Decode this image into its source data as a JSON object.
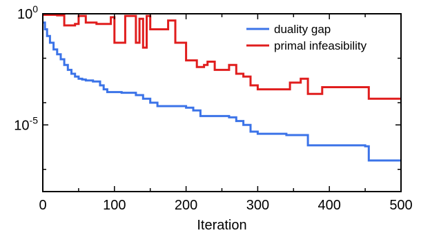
{
  "chart_data": {
    "type": "line",
    "title": "",
    "xlabel": "Iteration",
    "ylabel": "",
    "xlim": [
      0,
      500
    ],
    "ylim": [
      1e-08,
      1
    ],
    "yscale": "log",
    "x_ticks": [
      0,
      100,
      200,
      300,
      400,
      500
    ],
    "y_ticks_major": [
      {
        "value": 1,
        "base": "10",
        "exp": "0"
      },
      {
        "value": 1e-05,
        "base": "10",
        "exp": "-5"
      }
    ],
    "y_ticks_minor": [
      0.01,
      0.0001,
      1e-07
    ],
    "grid": false,
    "legend": "top-right",
    "series": [
      {
        "name": "duality gap",
        "color": "#3b73e8",
        "points": [
          [
            0,
            0.4
          ],
          [
            3,
            0.2
          ],
          [
            6,
            0.1
          ],
          [
            10,
            0.05
          ],
          [
            15,
            0.025
          ],
          [
            20,
            0.015
          ],
          [
            25,
            0.009
          ],
          [
            30,
            0.005
          ],
          [
            35,
            0.003
          ],
          [
            40,
            0.002
          ],
          [
            45,
            0.0015
          ],
          [
            50,
            0.0012
          ],
          [
            55,
            0.0011
          ],
          [
            60,
            0.001
          ],
          [
            70,
            0.0009
          ],
          [
            80,
            0.0006
          ],
          [
            85,
            0.0004
          ],
          [
            90,
            0.0003
          ],
          [
            110,
            0.00028
          ],
          [
            130,
            0.00022
          ],
          [
            140,
            0.00015
          ],
          [
            150,
            0.0001
          ],
          [
            160,
            7e-05
          ],
          [
            200,
            6e-05
          ],
          [
            210,
            4.5e-05
          ],
          [
            220,
            2.5e-05
          ],
          [
            260,
            2.2e-05
          ],
          [
            270,
            1.5e-05
          ],
          [
            280,
            1e-05
          ],
          [
            290,
            5e-06
          ],
          [
            300,
            4e-06
          ],
          [
            340,
            3.5e-06
          ],
          [
            370,
            1.2e-06
          ],
          [
            450,
            1.1e-06
          ],
          [
            455,
            2.5e-07
          ],
          [
            500,
            2.5e-07
          ]
        ]
      },
      {
        "name": "primal infeasibility",
        "color": "#e01d1d",
        "points": [
          [
            0,
            0.9
          ],
          [
            20,
            0.85
          ],
          [
            30,
            0.3
          ],
          [
            45,
            0.35
          ],
          [
            50,
            0.8
          ],
          [
            60,
            0.4
          ],
          [
            75,
            0.35
          ],
          [
            95,
            0.7
          ],
          [
            100,
            0.05
          ],
          [
            110,
            0.05
          ],
          [
            115,
            0.8
          ],
          [
            125,
            0.8
          ],
          [
            130,
            0.05
          ],
          [
            135,
            0.6
          ],
          [
            140,
            0.03
          ],
          [
            145,
            0.8
          ],
          [
            150,
            0.2
          ],
          [
            160,
            0.2
          ],
          [
            175,
            0.5
          ],
          [
            185,
            0.05
          ],
          [
            195,
            0.05
          ],
          [
            200,
            0.008
          ],
          [
            215,
            0.004
          ],
          [
            225,
            0.005
          ],
          [
            230,
            0.007
          ],
          [
            240,
            0.003
          ],
          [
            255,
            0.003
          ],
          [
            260,
            0.005
          ],
          [
            270,
            0.002
          ],
          [
            280,
            0.0015
          ],
          [
            290,
            0.0006
          ],
          [
            300,
            0.0004
          ],
          [
            330,
            0.0004
          ],
          [
            345,
            0.0008
          ],
          [
            355,
            0.0008
          ],
          [
            360,
            0.0012
          ],
          [
            370,
            0.00025
          ],
          [
            390,
            0.0005
          ],
          [
            450,
            0.0005
          ],
          [
            455,
            0.00015
          ],
          [
            500,
            0.00015
          ]
        ]
      }
    ]
  }
}
